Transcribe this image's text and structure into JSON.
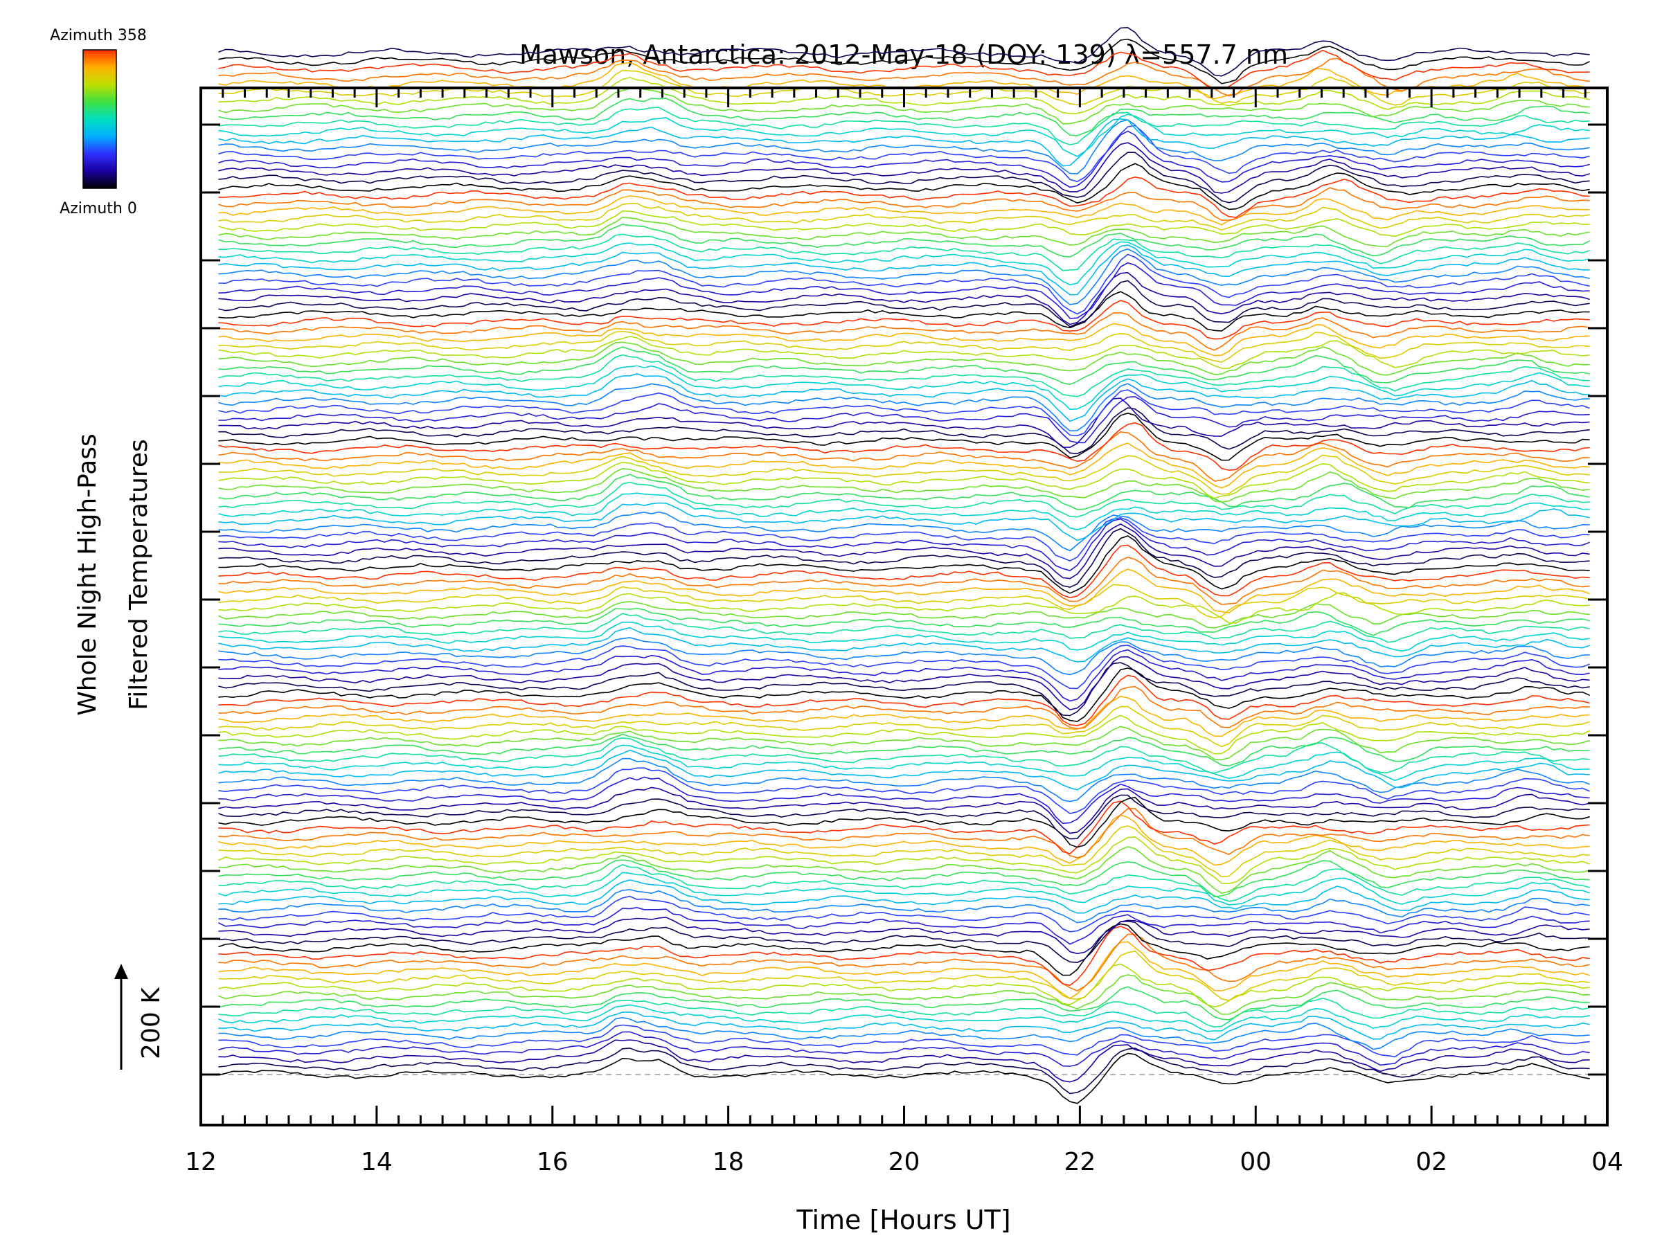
{
  "chart_data": {
    "type": "line",
    "title": "Mawson, Antarctica: 2012-May-18 (DOY: 139) λ=557.7 nm",
    "xlabel": "Time [Hours UT]",
    "ylabel_line1": "Whole Night High-Pass",
    "ylabel_line2": "Filtered Temperatures",
    "scale_label": "200 K",
    "x_ticks": [
      "12",
      "14",
      "16",
      "18",
      "20",
      "22",
      "00",
      "02",
      "04"
    ],
    "x_tick_hours": [
      12,
      14,
      16,
      18,
      20,
      22,
      24,
      26,
      28
    ],
    "xlim_hours": [
      12,
      28
    ],
    "data_start_hour": 12.2,
    "data_end_hour": 27.8,
    "colorbar": {
      "top_label": "Azimuth 358",
      "bottom_label": "Azimuth 0",
      "azimuth_range": [
        0,
        358
      ],
      "colors": [
        "#000000",
        "#1a00a0",
        "#3030ff",
        "#00b0ff",
        "#00e0c0",
        "#40e040",
        "#c0e000",
        "#ffb000",
        "#ff3000"
      ]
    },
    "trace_count": 130,
    "traces_per_group": 16,
    "trace_spacing_k": 16,
    "baseline_dashed": true,
    "feature_times_hours": [
      16.8,
      17.2,
      21.9,
      22.5,
      23.6,
      24.8,
      25.5,
      27.1
    ],
    "feature_amplitudes_k": [
      40,
      30,
      -60,
      60,
      -45,
      30,
      -25,
      20
    ],
    "grid": false,
    "legend": "none"
  }
}
